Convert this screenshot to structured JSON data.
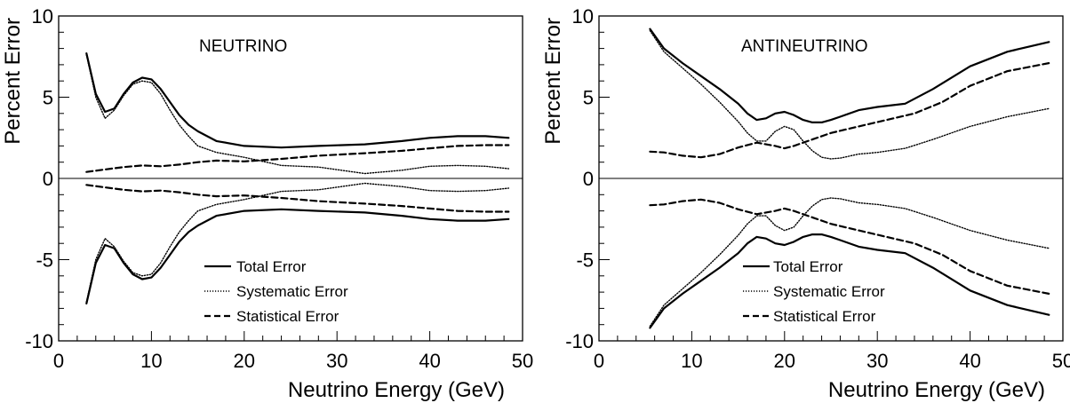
{
  "chart_data": [
    {
      "type": "line",
      "panel_label": "NEUTRINO",
      "xlabel": "Neutrino Energy (GeV)",
      "ylabel": "Percent Error",
      "xlim": [
        0,
        50
      ],
      "ylim": [
        -10,
        10
      ],
      "xticks": [
        0,
        10,
        20,
        30,
        40,
        50
      ],
      "xtick_labels": [
        "0",
        "10",
        "20",
        "30",
        "40",
        "50"
      ],
      "yticks": [
        -10,
        -5,
        0,
        5,
        10
      ],
      "ytick_labels": [
        "-10",
        "-5",
        "0",
        "5",
        "10"
      ],
      "zero_line": true,
      "grid": false,
      "legend_position": "bottom-center",
      "series": [
        {
          "name": "Total Error",
          "style": "solid",
          "x": [
            3,
            4,
            5,
            6,
            7,
            8,
            9,
            10,
            11,
            12,
            13,
            14,
            15,
            17,
            20,
            24,
            28,
            33,
            37,
            40,
            43,
            46,
            48.5
          ],
          "upper": [
            7.7,
            5.2,
            4.1,
            4.3,
            5.2,
            5.9,
            6.2,
            6.1,
            5.5,
            4.7,
            3.9,
            3.3,
            2.9,
            2.3,
            2.0,
            1.9,
            2.0,
            2.1,
            2.3,
            2.5,
            2.6,
            2.6,
            2.5
          ],
          "lower": [
            -7.7,
            -5.2,
            -4.1,
            -4.3,
            -5.2,
            -5.9,
            -6.2,
            -6.1,
            -5.5,
            -4.7,
            -3.9,
            -3.3,
            -2.9,
            -2.3,
            -2.0,
            -1.9,
            -2.0,
            -2.1,
            -2.3,
            -2.5,
            -2.6,
            -2.6,
            -2.5
          ]
        },
        {
          "name": "Systematic Error",
          "style": "dotted",
          "x": [
            3,
            4,
            5,
            6,
            7,
            8,
            9,
            10,
            11,
            12,
            13,
            14,
            15,
            17,
            20,
            24,
            28,
            33,
            37,
            40,
            43,
            46,
            48.5
          ],
          "upper": [
            7.6,
            5.0,
            3.7,
            4.2,
            5.1,
            5.8,
            6.0,
            5.9,
            5.2,
            4.2,
            3.3,
            2.6,
            2.0,
            1.6,
            1.3,
            0.8,
            0.7,
            0.3,
            0.5,
            0.75,
            0.8,
            0.75,
            0.6
          ],
          "lower": [
            -7.6,
            -5.0,
            -3.7,
            -4.2,
            -5.1,
            -5.8,
            -6.0,
            -5.9,
            -5.2,
            -4.2,
            -3.3,
            -2.6,
            -2.0,
            -1.6,
            -1.3,
            -0.8,
            -0.7,
            -0.3,
            -0.5,
            -0.75,
            -0.8,
            -0.75,
            -0.6
          ]
        },
        {
          "name": "Statistical Error",
          "style": "dashed",
          "x": [
            3,
            5,
            7,
            9,
            11,
            13,
            15,
            17,
            20,
            24,
            28,
            33,
            37,
            40,
            43,
            46,
            48.5
          ],
          "upper": [
            0.4,
            0.55,
            0.7,
            0.8,
            0.75,
            0.85,
            1.0,
            1.1,
            1.05,
            1.2,
            1.4,
            1.55,
            1.7,
            1.85,
            2.0,
            2.05,
            2.05
          ],
          "lower": [
            -0.4,
            -0.55,
            -0.7,
            -0.8,
            -0.75,
            -0.85,
            -1.0,
            -1.1,
            -1.05,
            -1.2,
            -1.4,
            -1.55,
            -1.7,
            -1.85,
            -2.0,
            -2.05,
            -2.05
          ]
        }
      ]
    },
    {
      "type": "line",
      "panel_label": "ANTINEUTRINO",
      "xlabel": "Neutrino Energy (GeV)",
      "ylabel": "Percent Error",
      "xlim": [
        0,
        50
      ],
      "ylim": [
        -10,
        10
      ],
      "xticks": [
        0,
        10,
        20,
        30,
        40,
        50
      ],
      "xtick_labels": [
        "0",
        "10",
        "20",
        "30",
        "40",
        "50"
      ],
      "yticks": [
        -10,
        -5,
        0,
        5,
        10
      ],
      "ytick_labels": [
        "-10",
        "-5",
        "0",
        "5",
        "10"
      ],
      "zero_line": true,
      "grid": false,
      "legend_position": "bottom-right",
      "series": [
        {
          "name": "Total Error",
          "style": "solid",
          "x": [
            5.5,
            7,
            9,
            11,
            13,
            15,
            16,
            17,
            18,
            19,
            20,
            21,
            22,
            23,
            24,
            25,
            26,
            28,
            30,
            33,
            36,
            40,
            44,
            48.5
          ],
          "upper": [
            9.2,
            8.0,
            7.1,
            6.3,
            5.5,
            4.6,
            4.0,
            3.6,
            3.7,
            4.0,
            4.1,
            3.9,
            3.6,
            3.45,
            3.45,
            3.6,
            3.8,
            4.2,
            4.4,
            4.6,
            5.5,
            6.9,
            7.8,
            8.4
          ],
          "lower": [
            -9.2,
            -8.0,
            -7.1,
            -6.3,
            -5.5,
            -4.6,
            -4.0,
            -3.6,
            -3.7,
            -4.0,
            -4.1,
            -3.9,
            -3.6,
            -3.45,
            -3.45,
            -3.6,
            -3.8,
            -4.2,
            -4.4,
            -4.6,
            -5.5,
            -6.9,
            -7.8,
            -8.4
          ]
        },
        {
          "name": "Systematic Error",
          "style": "dotted",
          "x": [
            5.5,
            7,
            9,
            11,
            13,
            15,
            16,
            17,
            18,
            19,
            20,
            21,
            22,
            23,
            24,
            25,
            26,
            28,
            30,
            33,
            36,
            40,
            44,
            48.5
          ],
          "upper": [
            9.1,
            7.8,
            6.8,
            5.8,
            4.7,
            3.5,
            2.8,
            2.3,
            2.3,
            2.9,
            3.2,
            3.0,
            2.3,
            1.7,
            1.3,
            1.2,
            1.25,
            1.5,
            1.6,
            1.85,
            2.4,
            3.2,
            3.8,
            4.3
          ],
          "lower": [
            -9.1,
            -7.8,
            -6.8,
            -5.8,
            -4.7,
            -3.5,
            -2.8,
            -2.3,
            -2.3,
            -2.9,
            -3.2,
            -3.0,
            -2.3,
            -1.7,
            -1.3,
            -1.2,
            -1.25,
            -1.5,
            -1.6,
            -1.85,
            -2.4,
            -3.2,
            -3.8,
            -4.3
          ]
        },
        {
          "name": "Statistical Error",
          "style": "dashed",
          "x": [
            5.5,
            7,
            9,
            11,
            13,
            15,
            17,
            19,
            20,
            21,
            23,
            25,
            28,
            31,
            34,
            37,
            40,
            44,
            48.5
          ],
          "upper": [
            1.65,
            1.6,
            1.4,
            1.3,
            1.5,
            1.9,
            2.2,
            2.0,
            1.85,
            2.0,
            2.4,
            2.8,
            3.2,
            3.6,
            4.0,
            4.7,
            5.7,
            6.6,
            7.1
          ],
          "lower": [
            -1.65,
            -1.6,
            -1.4,
            -1.3,
            -1.5,
            -1.9,
            -2.2,
            -2.0,
            -1.85,
            -2.0,
            -2.4,
            -2.8,
            -3.2,
            -3.6,
            -4.0,
            -4.7,
            -5.7,
            -6.6,
            -7.1
          ]
        }
      ]
    }
  ]
}
